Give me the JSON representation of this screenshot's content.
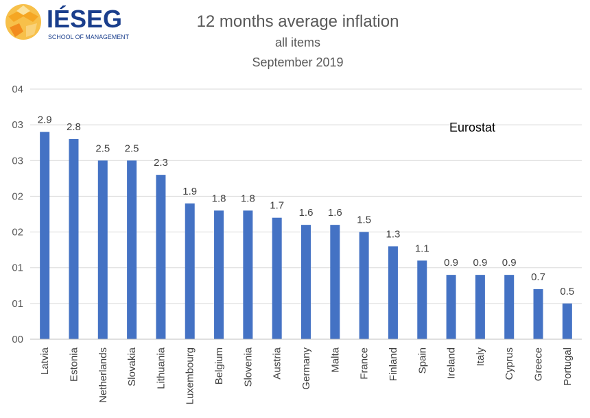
{
  "logo": {
    "name": "IÉSEG",
    "tagline": "SCHOOL OF MANAGEMENT",
    "color": "#1a3e8c",
    "accent": "#f5a623"
  },
  "chart_data": {
    "type": "bar",
    "title": "12 months average inflation",
    "subtitle": [
      "all items",
      "September 2019"
    ],
    "annotation": "Eurostat",
    "categories": [
      "Latvia",
      "Estonia",
      "Netherlands",
      "Slovakia",
      "Lithuania",
      "Luxembourg",
      "Belgium",
      "Slovenia",
      "Austria",
      "Germany",
      "Malta",
      "France",
      "Finland",
      "Spain",
      "Ireland",
      "Italy",
      "Cyprus",
      "Greece",
      "Portugal"
    ],
    "values": [
      2.9,
      2.8,
      2.5,
      2.5,
      2.3,
      1.9,
      1.8,
      1.8,
      1.7,
      1.6,
      1.6,
      1.5,
      1.3,
      1.1,
      0.9,
      0.9,
      0.9,
      0.7,
      0.5
    ],
    "data_labels": [
      "2.9",
      "2.8",
      "2.5",
      "2.5",
      "2.3",
      "1.9",
      "1.8",
      "1.8",
      "1.7",
      "1.6",
      "1.6",
      "1.5",
      "1.3",
      "1.1",
      "0.9",
      "0.9",
      "0.9",
      "0.7",
      "0.5"
    ],
    "ylim": [
      0,
      3.5
    ],
    "yticks": [
      0,
      0.5,
      1,
      1.5,
      2,
      2.5,
      3,
      3.5
    ],
    "ytick_labels": [
      "00",
      "01",
      "01",
      "02",
      "02",
      "03",
      "03",
      "04"
    ],
    "xlabel": "",
    "ylabel": "",
    "grid": true,
    "bar_color": "#4472c4",
    "grid_color": "#d9d9d9"
  }
}
